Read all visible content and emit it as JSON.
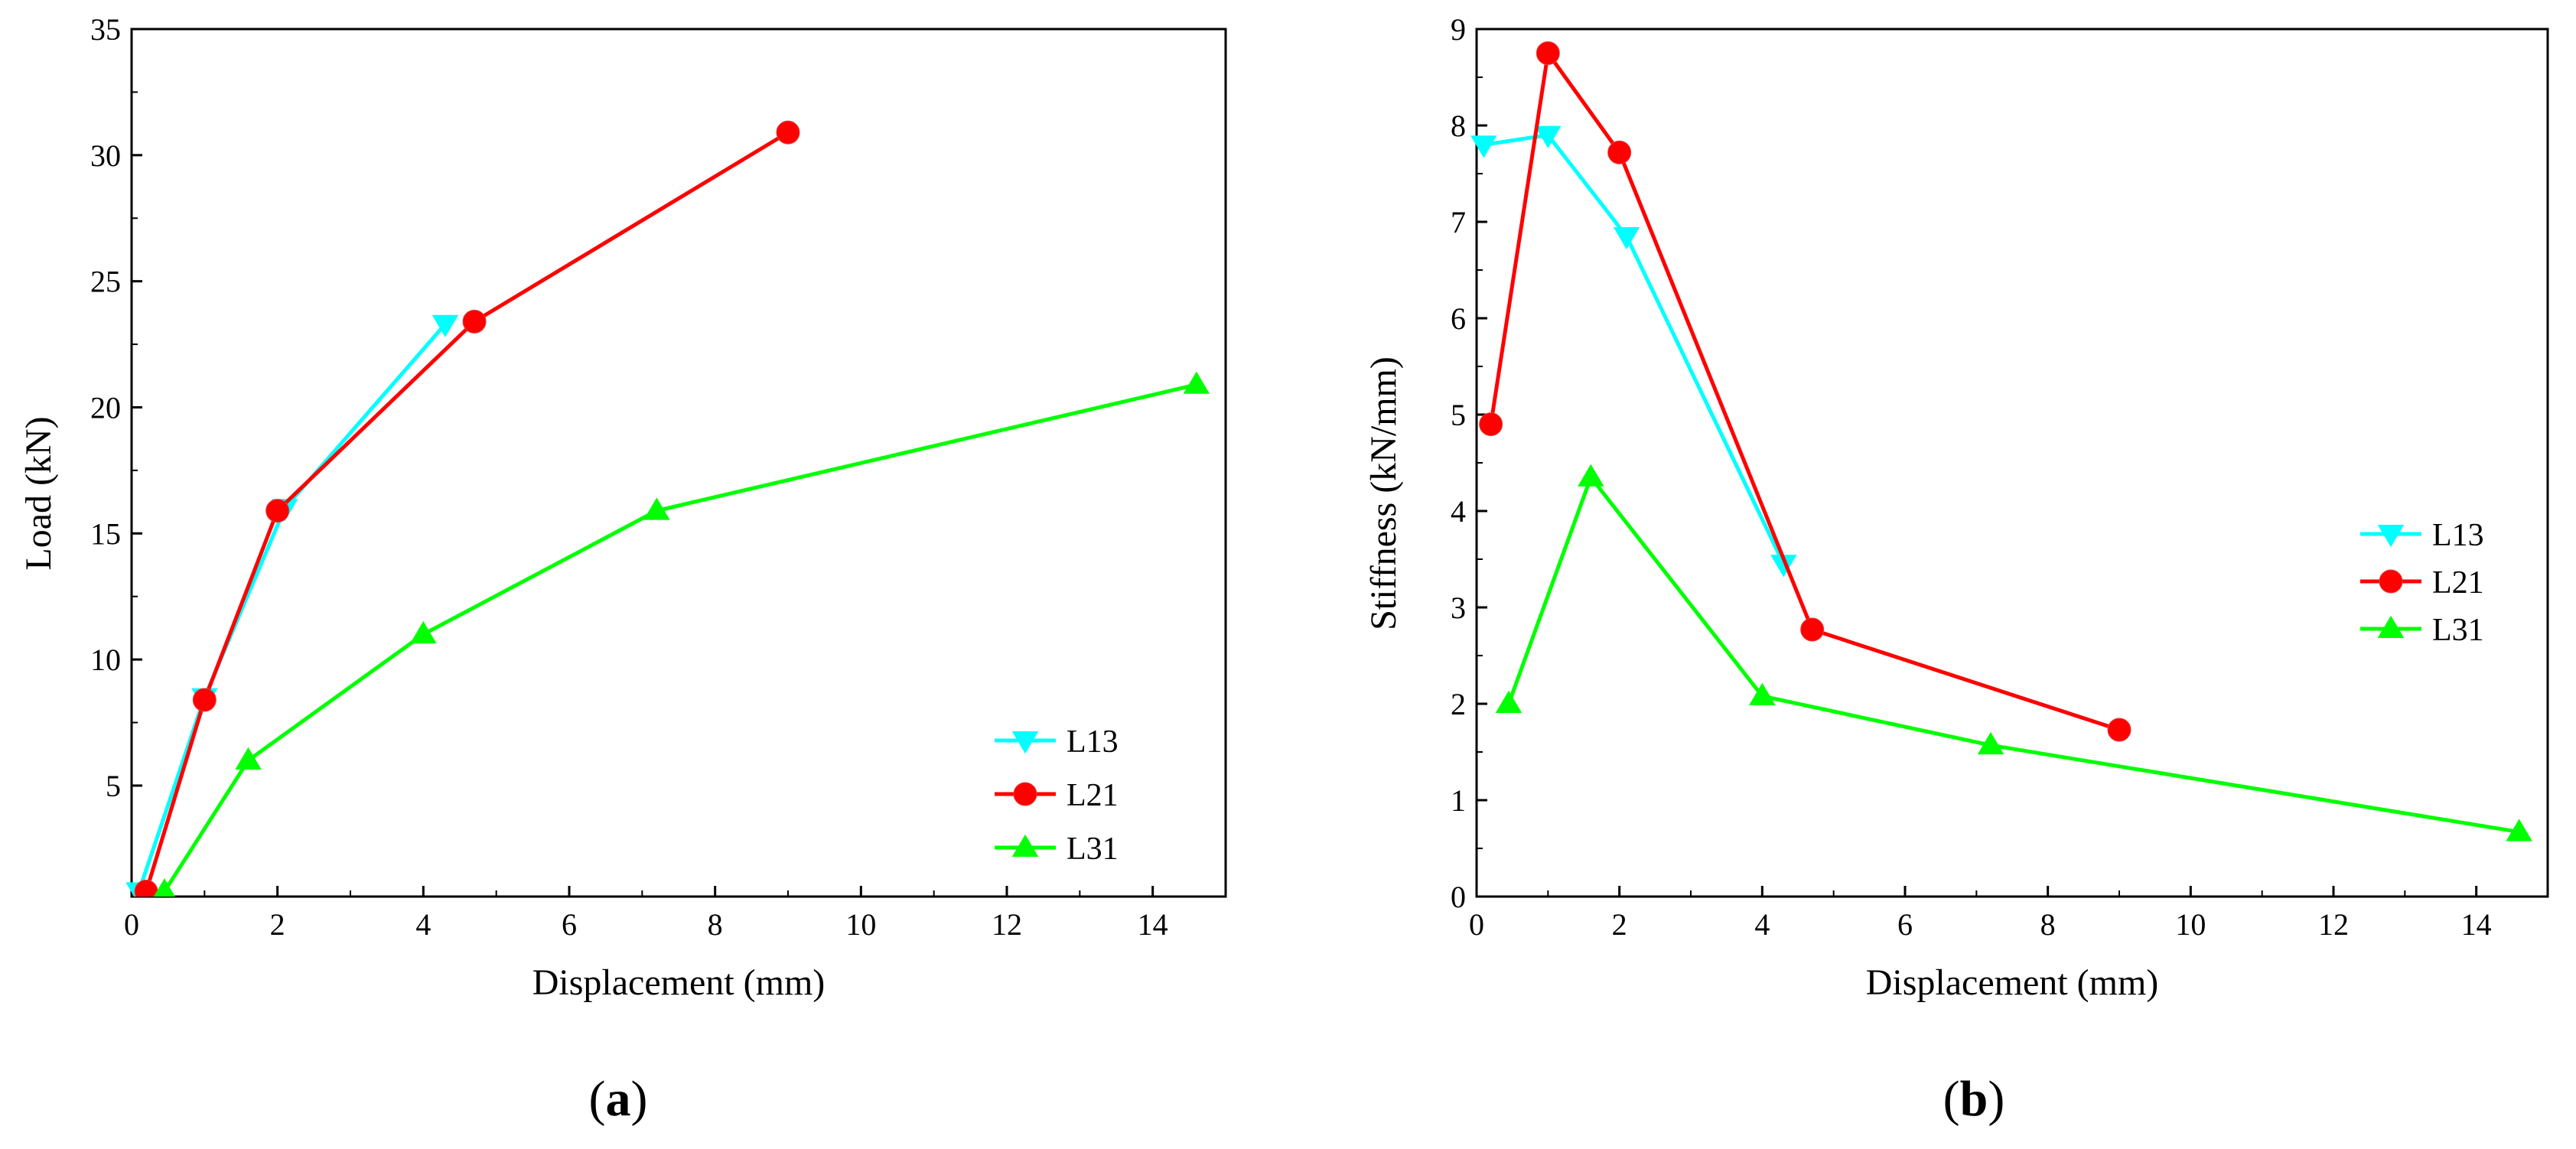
{
  "chart_data": [
    {
      "type": "line",
      "id": "a",
      "caption": {
        "open": "(",
        "letter": "a",
        "close": ")"
      },
      "title": "",
      "xlabel": "Displacement (mm)",
      "ylabel": "Load (kN)",
      "xlim": [
        0,
        15
      ],
      "ylim": [
        0.6,
        35
      ],
      "xticks": [
        0,
        2,
        4,
        6,
        8,
        10,
        12,
        14
      ],
      "yticks": [
        5,
        10,
        15,
        20,
        25,
        30,
        35
      ],
      "grid": false,
      "legend_position": "bottom-right",
      "series": [
        {
          "name": "L13",
          "color": "#00ffff",
          "marker": "triangle-down",
          "x": [
            0.1,
            1.0,
            2.1,
            4.3
          ],
          "y": [
            0.8,
            8.5,
            16.0,
            23.3
          ]
        },
        {
          "name": "L21",
          "color": "#ff0000",
          "marker": "circle",
          "x": [
            0.2,
            1.0,
            2.0,
            4.7,
            9.0
          ],
          "y": [
            0.8,
            8.4,
            15.9,
            23.4,
            30.9
          ]
        },
        {
          "name": "L31",
          "color": "#00ff00",
          "marker": "triangle-up",
          "x": [
            0.45,
            1.6,
            4.0,
            7.2,
            14.6
          ],
          "y": [
            0.8,
            6.0,
            11.0,
            15.9,
            20.9
          ]
        }
      ]
    },
    {
      "type": "line",
      "id": "b",
      "caption": {
        "open": "(",
        "letter": "b",
        "close": ")"
      },
      "title": "",
      "xlabel": "Displacement (mm)",
      "ylabel": "Stiffness (kN/mm)",
      "xlim": [
        0,
        15
      ],
      "ylim": [
        0,
        9
      ],
      "xticks": [
        0,
        2,
        4,
        6,
        8,
        10,
        12,
        14
      ],
      "yticks": [
        0,
        1,
        2,
        3,
        4,
        5,
        6,
        7,
        8,
        9
      ],
      "grid": false,
      "legend_position": "right",
      "series": [
        {
          "name": "L13",
          "color": "#00ffff",
          "marker": "triangle-down",
          "x": [
            0.1,
            1.0,
            2.1,
            4.3
          ],
          "y": [
            7.8,
            7.9,
            6.85,
            3.45
          ]
        },
        {
          "name": "L21",
          "color": "#ff0000",
          "marker": "circle",
          "x": [
            0.2,
            1.0,
            2.0,
            4.7,
            9.0
          ],
          "y": [
            4.9,
            8.75,
            7.72,
            2.77,
            1.73
          ]
        },
        {
          "name": "L31",
          "color": "#00ff00",
          "marker": "triangle-up",
          "x": [
            0.45,
            1.6,
            4.0,
            7.2,
            14.6
          ],
          "y": [
            2.0,
            4.35,
            2.08,
            1.57,
            0.67
          ]
        }
      ]
    }
  ]
}
